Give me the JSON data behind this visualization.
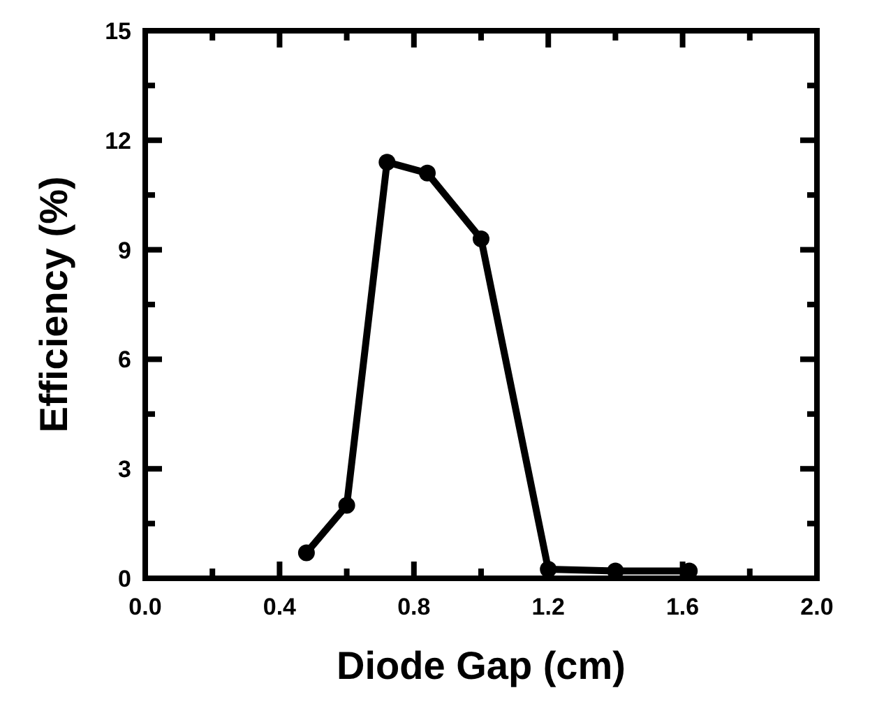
{
  "chart_data": {
    "type": "line",
    "xlabel": "Diode Gap (cm)",
    "ylabel": "Efficiency (%)",
    "x": [
      0.48,
      0.6,
      0.72,
      0.84,
      1.0,
      1.2,
      1.4,
      1.62
    ],
    "values": [
      0.7,
      2.0,
      11.4,
      11.1,
      9.3,
      0.25,
      0.2,
      0.2
    ],
    "color": "#000000",
    "marker": "circle",
    "line_style": "solid",
    "grid": false,
    "xlim": [
      0,
      2
    ],
    "ylim": [
      0,
      15
    ],
    "xticks": [
      {
        "value": 0,
        "label": "0.0"
      },
      {
        "value": 0.2,
        "label": null
      },
      {
        "value": 0.4,
        "label": "0.4"
      },
      {
        "value": 0.6,
        "label": null
      },
      {
        "value": 0.8,
        "label": "0.8"
      },
      {
        "value": 1.0,
        "label": null
      },
      {
        "value": 1.2,
        "label": "1.2"
      },
      {
        "value": 1.4,
        "label": null
      },
      {
        "value": 1.6,
        "label": "1.6"
      },
      {
        "value": 1.8,
        "label": null
      },
      {
        "value": 2.0,
        "label": "2.0"
      }
    ],
    "yticks": [
      0,
      {
        "value": 1.5,
        "label": null
      },
      3,
      {
        "value": 4.5,
        "label": null
      },
      6,
      {
        "value": 7.5,
        "label": null
      },
      9,
      {
        "value": 10.5,
        "label": null
      },
      12,
      {
        "value": 13.5,
        "label": null
      },
      15
    ]
  }
}
